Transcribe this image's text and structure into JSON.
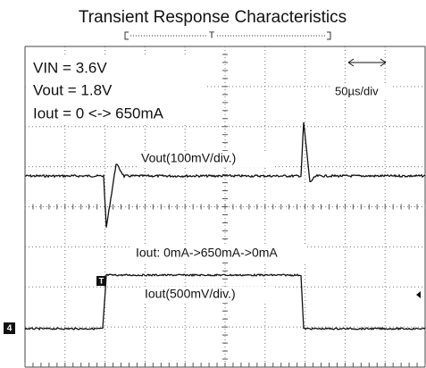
{
  "title": "Transient Response Characteristics",
  "trigger_position": "T",
  "settings": [
    "VIN = 3.6V",
    "Vout = 1.8V",
    "Iout = 0 <-> 650mA"
  ],
  "timebase": "50µs/div",
  "labels": {
    "vout": "Vout(100mV/div.)",
    "iout_step": "Iout: 0mA->650mA->0mA",
    "iout": "Iout(500mV/div.)"
  },
  "markers": {
    "trigger": "T",
    "channel": "4"
  }
}
